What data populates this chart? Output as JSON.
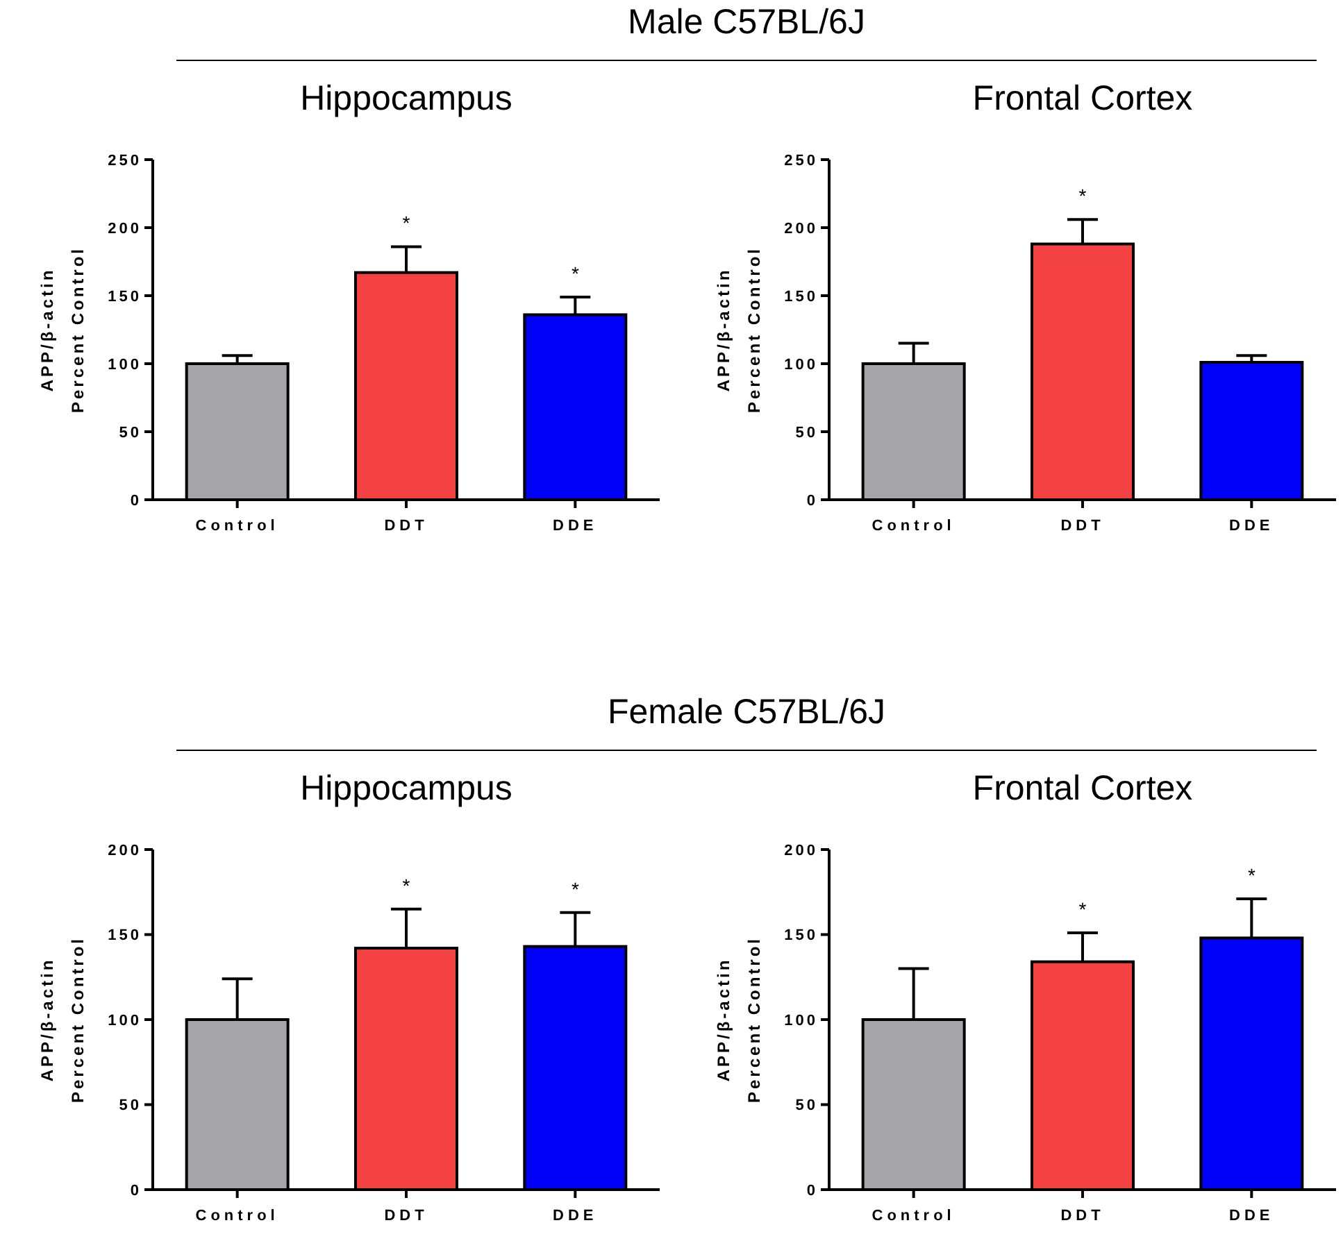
{
  "chart_data": [
    {
      "type": "other",
      "title": "Male C57BL/6J"
    },
    {
      "type": "bar",
      "title": "Hippocampus",
      "ylabel": "APP/β-actin\nPercent Control",
      "categories": [
        "Control",
        "DDT",
        "DDE"
      ],
      "values": [
        100,
        167,
        136
      ],
      "colors": [
        "#a6a5aa",
        "#f44141",
        "#0000fa"
      ],
      "errors": [
        [
          100,
          106
        ],
        [
          167,
          186
        ],
        [
          136,
          149
        ]
      ],
      "ylim": [
        0,
        250
      ],
      "yticks": [
        0,
        50,
        100,
        150,
        200,
        250
      ],
      "annotations": [
        {
          "text": "*",
          "x": "DDT",
          "y": 186
        },
        {
          "text": "*",
          "x": "DDE",
          "y": 149
        }
      ]
    },
    {
      "type": "bar",
      "title": "Frontal Cortex",
      "ylabel": "APP/β-actin\nPercent Control",
      "categories": [
        "Control",
        "DDT",
        "DDE"
      ],
      "values": [
        100,
        188,
        101
      ],
      "colors": [
        "#a6a5aa",
        "#f44141",
        "#0000fa"
      ],
      "errors": [
        [
          100,
          115
        ],
        [
          188,
          206
        ],
        [
          101,
          106
        ]
      ],
      "ylim": [
        0,
        250
      ],
      "yticks": [
        0,
        50,
        100,
        150,
        200,
        250
      ],
      "annotations": [
        {
          "text": "*",
          "x": "DDT",
          "y": 206
        }
      ]
    },
    {
      "type": "other",
      "title": "Female C57BL/6J"
    },
    {
      "type": "bar",
      "title": "Hippocampus",
      "ylabel": "APP/β-actin\nPercent Control",
      "categories": [
        "Control",
        "DDT",
        "DDE"
      ],
      "values": [
        100,
        142,
        143
      ],
      "colors": [
        "#a6a5aa",
        "#f44141",
        "#0000fa"
      ],
      "errors": [
        [
          100,
          124
        ],
        [
          142,
          165
        ],
        [
          143,
          163
        ]
      ],
      "ylim": [
        0,
        200
      ],
      "yticks": [
        0,
        50,
        100,
        150,
        200
      ],
      "annotations": [
        {
          "text": "*",
          "x": "DDT",
          "y": 165
        },
        {
          "text": "*",
          "x": "DDE",
          "y": 163
        }
      ]
    },
    {
      "type": "bar",
      "title": "Frontal Cortex",
      "ylabel": "APP/β-actin\nPercent Control",
      "categories": [
        "Control",
        "DDT",
        "DDE"
      ],
      "values": [
        100,
        134,
        148
      ],
      "colors": [
        "#a6a5aa",
        "#f44141",
        "#0000fa"
      ],
      "errors": [
        [
          100,
          130
        ],
        [
          134,
          151
        ],
        [
          148,
          171
        ]
      ],
      "ylim": [
        0,
        200
      ],
      "yticks": [
        0,
        50,
        100,
        150,
        200
      ],
      "annotations": [
        {
          "text": "*",
          "x": "DDT",
          "y": 151
        },
        {
          "text": "*",
          "x": "DDE",
          "y": 171
        }
      ]
    }
  ]
}
